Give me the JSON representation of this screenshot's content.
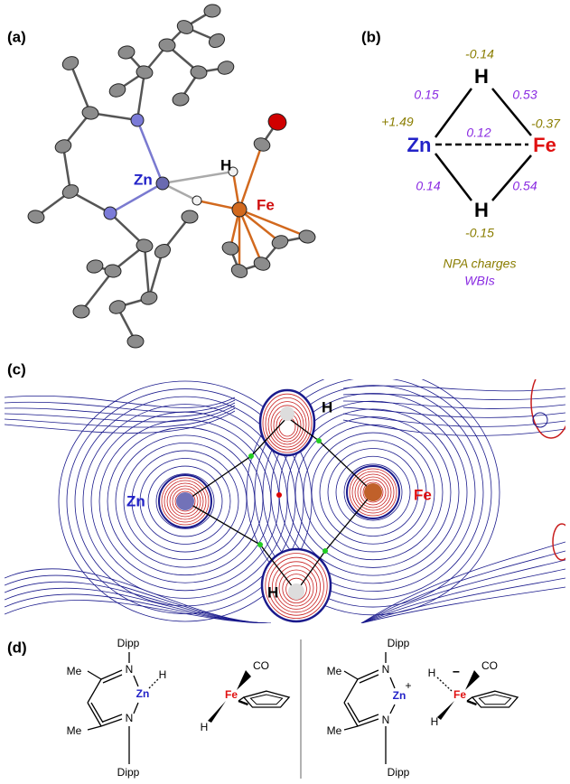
{
  "figure": {
    "a": {
      "label": "(a)",
      "zn": "Zn",
      "h": "H",
      "fe": "Fe"
    },
    "b": {
      "label": "(b)",
      "h_top": "H",
      "h_bottom": "H",
      "zn": "Zn",
      "fe": "Fe",
      "charges": {
        "h_top": "-0.14",
        "zn": "+1.49",
        "fe": "-0.37",
        "h_bottom": "-0.15"
      },
      "wbi": {
        "zn_h_top": "0.15",
        "h_top_fe": "0.53",
        "zn_fe": "0.12",
        "zn_h_bottom": "0.14",
        "h_bottom_fe": "0.54"
      },
      "legend": {
        "charges": "NPA charges",
        "wbi": "WBIs"
      }
    },
    "c": {
      "label": "(c)",
      "h_top": "H",
      "zn": "Zn",
      "fe": "Fe",
      "h_bottom": "H"
    },
    "d": {
      "label": "(d)",
      "left": {
        "me_top": "Me",
        "dipp_top": "Dipp",
        "n_top": "N",
        "h_zn": "H",
        "zn": "Zn",
        "n_bottom": "N",
        "me_bottom": "Me",
        "dipp_bottom": "Dipp",
        "co": "CO",
        "fe": "Fe",
        "h_fe": "H"
      },
      "right": {
        "me_top": "Me",
        "dipp_top": "Dipp",
        "n_top": "N",
        "plus": "+",
        "zn": "Zn",
        "n_bottom": "N",
        "me_bottom": "Me",
        "dipp_bottom": "Dipp",
        "h_top": "H",
        "minus": "−",
        "co": "CO",
        "fe": "Fe",
        "h_bottom": "H"
      }
    }
  }
}
